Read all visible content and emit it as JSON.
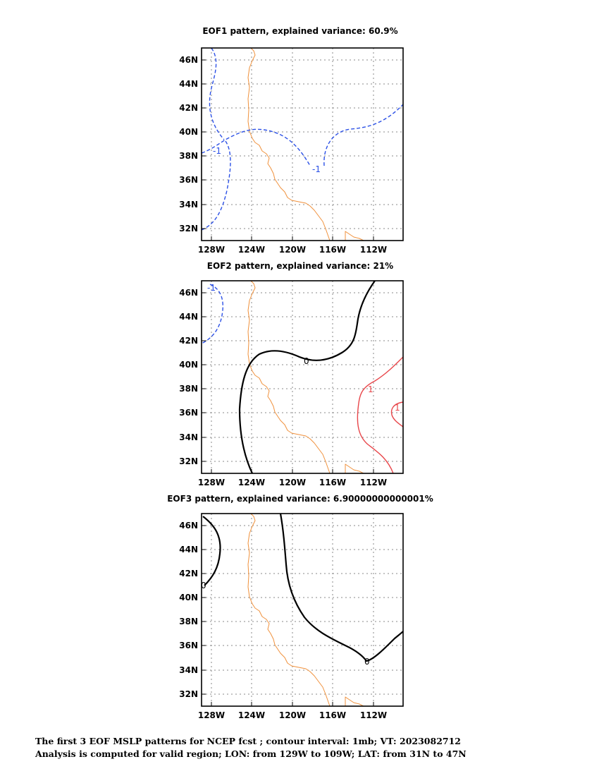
{
  "maps": [
    {
      "title": "EOF1 pattern, explained variance: 60.9%",
      "contours": [
        {
          "value": "-1",
          "sign": "negative"
        }
      ]
    },
    {
      "title": "EOF2 pattern, explained variance: 21%",
      "contours": [
        {
          "value": "-1",
          "sign": "negative"
        },
        {
          "value": "0",
          "sign": "zero"
        },
        {
          "value": "1",
          "sign": "positive"
        }
      ]
    },
    {
      "title": "EOF3 pattern, explained variance: 6.90000000000001%",
      "contours": [
        {
          "value": "0",
          "sign": "zero"
        }
      ]
    }
  ],
  "axes": {
    "x_ticks": [
      "128W",
      "124W",
      "120W",
      "116W",
      "112W"
    ],
    "y_ticks": [
      "46N",
      "44N",
      "42N",
      "40N",
      "38N",
      "36N",
      "34N",
      "32N"
    ],
    "lon_range": [
      -129,
      -109
    ],
    "lat_range": [
      31,
      47
    ],
    "grid": true
  },
  "colors": {
    "negative": "#2b50e6",
    "positive": "#e8464a",
    "zero": "#000000",
    "coastline": "#f0913c"
  },
  "caption": {
    "line1": "The first 3 EOF MSLP patterns for NCEP fcst ; contour interval: 1mb; VT: 2023082712",
    "line2": "Analysis is computed for valid region; LON: from 129W to 109W; LAT: from 31N to 47N"
  }
}
